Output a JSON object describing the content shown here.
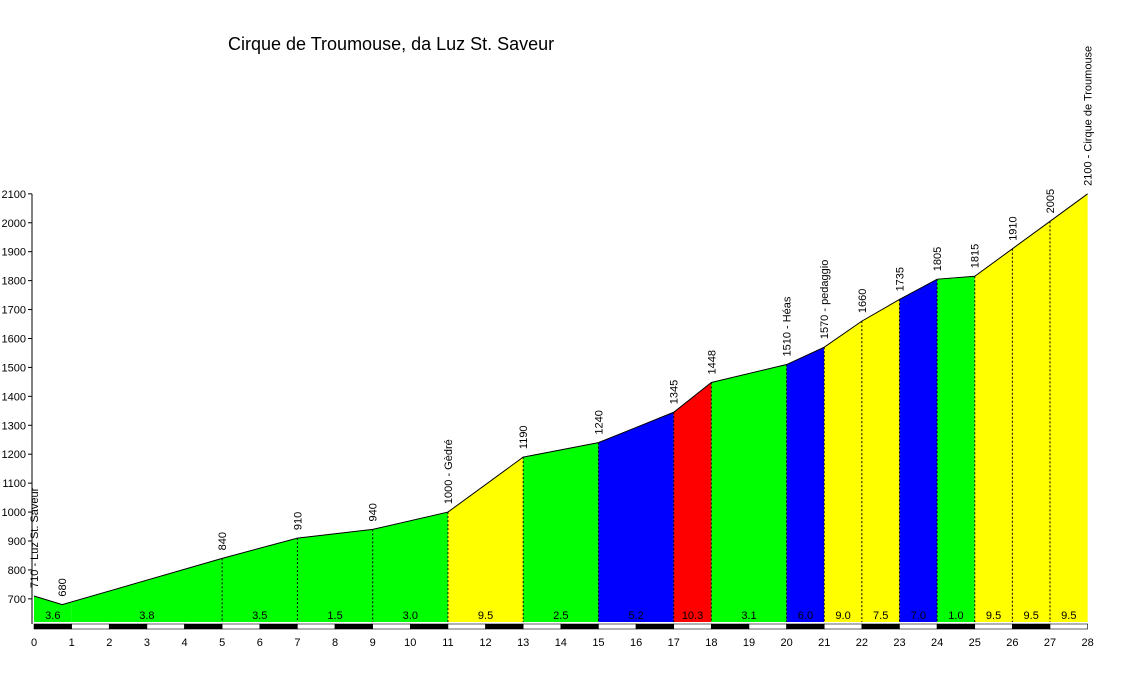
{
  "chart_data": {
    "type": "area",
    "title": "Cirque de Troumouse, da Luz St. Saveur",
    "xlabel": "",
    "ylabel": "",
    "xlim": [
      0,
      28
    ],
    "ylim": [
      620,
      2100
    ],
    "y_ticks": [
      700,
      800,
      900,
      1000,
      1100,
      1200,
      1300,
      1400,
      1500,
      1600,
      1700,
      1800,
      1900,
      2000,
      2100
    ],
    "x_ticks": [
      0,
      1,
      2,
      3,
      4,
      5,
      6,
      7,
      8,
      9,
      10,
      11,
      12,
      13,
      14,
      15,
      16,
      17,
      18,
      19,
      20,
      21,
      22,
      23,
      24,
      25,
      26,
      27,
      28
    ],
    "points": [
      {
        "x": 0,
        "y": 710,
        "label": "710 - Luz St. Saveur"
      },
      {
        "x": 0.75,
        "y": 680,
        "label": "680"
      },
      {
        "x": 5,
        "y": 840,
        "label": "840"
      },
      {
        "x": 7,
        "y": 910,
        "label": "910"
      },
      {
        "x": 9,
        "y": 940,
        "label": "940"
      },
      {
        "x": 11,
        "y": 1000,
        "label": "1000 - Gèdré"
      },
      {
        "x": 13,
        "y": 1190,
        "label": "1190"
      },
      {
        "x": 15,
        "y": 1240,
        "label": "1240"
      },
      {
        "x": 17,
        "y": 1345,
        "label": "1345"
      },
      {
        "x": 18,
        "y": 1448,
        "label": "1448"
      },
      {
        "x": 20,
        "y": 1510,
        "label": "1510 - Héas"
      },
      {
        "x": 21,
        "y": 1570,
        "label": "1570 - pedaggio"
      },
      {
        "x": 22,
        "y": 1660,
        "label": "1660"
      },
      {
        "x": 23,
        "y": 1735,
        "label": "1735"
      },
      {
        "x": 24,
        "y": 1805,
        "label": "1805"
      },
      {
        "x": 25,
        "y": 1815,
        "label": "1815"
      },
      {
        "x": 26,
        "y": 1910,
        "label": "1910"
      },
      {
        "x": 27,
        "y": 2005,
        "label": "2005"
      },
      {
        "x": 28,
        "y": 2100,
        "label": "2100 - Cirque de Troumouse"
      }
    ],
    "segments": [
      {
        "from": 0,
        "to": 1,
        "gradient": "3.6",
        "color": "#00ff00",
        "dividers": []
      },
      {
        "from": 1,
        "to": 5,
        "gradient": "3.8",
        "color": "#00ff00",
        "dividers": []
      },
      {
        "from": 5,
        "to": 7,
        "gradient": "3.5",
        "color": "#00ff00",
        "dividers": [
          5
        ]
      },
      {
        "from": 7,
        "to": 9,
        "gradient": "1.5",
        "color": "#00ff00",
        "dividers": [
          7
        ]
      },
      {
        "from": 9,
        "to": 11,
        "gradient": "3.0",
        "color": "#00ff00",
        "dividers": [
          9
        ]
      },
      {
        "from": 11,
        "to": 13,
        "gradient": "9.5",
        "color": "#ffff00",
        "dividers": [
          11
        ]
      },
      {
        "from": 13,
        "to": 15,
        "gradient": "2.5",
        "color": "#00ff00",
        "dividers": [
          13
        ]
      },
      {
        "from": 15,
        "to": 17,
        "gradient": "5.2",
        "color": "#0000ff",
        "dividers": [
          15
        ]
      },
      {
        "from": 17,
        "to": 18,
        "gradient": "10.3",
        "color": "#ff0000",
        "dividers": [
          17
        ]
      },
      {
        "from": 18,
        "to": 20,
        "gradient": "3.1",
        "color": "#00ff00",
        "dividers": [
          18
        ]
      },
      {
        "from": 20,
        "to": 21,
        "gradient": "6.0",
        "color": "#0000ff",
        "dividers": [
          20
        ]
      },
      {
        "from": 21,
        "to": 22,
        "gradient": "9.0",
        "color": "#ffff00",
        "dividers": [
          21
        ]
      },
      {
        "from": 22,
        "to": 23,
        "gradient": "7.5",
        "color": "#ffff00",
        "dividers": [
          22
        ]
      },
      {
        "from": 23,
        "to": 24,
        "gradient": "7.0",
        "color": "#0000ff",
        "dividers": [
          23
        ]
      },
      {
        "from": 24,
        "to": 25,
        "gradient": "1.0",
        "color": "#00ff00",
        "dividers": [
          24
        ]
      },
      {
        "from": 25,
        "to": 26,
        "gradient": "9.5",
        "color": "#ffff00",
        "dividers": [
          25
        ]
      },
      {
        "from": 26,
        "to": 27,
        "gradient": "9.5",
        "color": "#ffff00",
        "dividers": [
          26
        ]
      },
      {
        "from": 27,
        "to": 28,
        "gradient": "9.5",
        "color": "#ffff00",
        "dividers": [
          27
        ]
      }
    ],
    "grid": false,
    "legend": "none"
  }
}
